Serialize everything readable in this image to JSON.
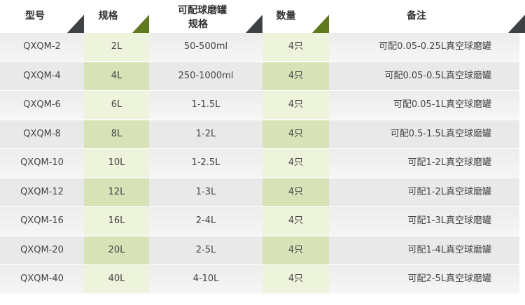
{
  "header": [
    "型号",
    "规格",
    "可配球磨罐 规格",
    "数量",
    "备注"
  ],
  "header_col3_lines": [
    "可配球磨罐",
    "规格"
  ],
  "rows": [
    [
      "QXQM-2",
      "2L",
      "50-500ml",
      "4只",
      "可配0.05-0.25L真空球磨罐"
    ],
    [
      "QXQM-4",
      "4L",
      "250-1000ml",
      "4只",
      "可配0.05-0.5L真空球磨罐"
    ],
    [
      "QXQM-6",
      "6L",
      "1-1.5L",
      "4只",
      "可配0.05-1L真空球磨罐"
    ],
    [
      "QXQM-8",
      "8L",
      "1-2L",
      "4只",
      "可配0.5-1.5L真空球磨罐"
    ],
    [
      "QXQM-10",
      "10L",
      "1-2.5L",
      "4只",
      "可配1-2L真空球磨罐"
    ],
    [
      "QXQM-12",
      "12L",
      "1-3L",
      "4只",
      "可配1-2L真空球磨罐"
    ],
    [
      "QXQM-16",
      "16L",
      "2-4L",
      "4只",
      "可配1-3L真空球磨罐"
    ],
    [
      "QXQM-20",
      "20L",
      "2-5L",
      "4只",
      "可配1-4L真空球磨罐"
    ],
    [
      "QXQM-40",
      "40L",
      "4-10L",
      "4只",
      "可配2-5L真空球磨罐"
    ]
  ],
  "colors": {
    "accent_green": "#5f7a1c",
    "dark": "#3d4144",
    "green_light": "#eef3dc",
    "green_dark": "#d7e3b7"
  }
}
